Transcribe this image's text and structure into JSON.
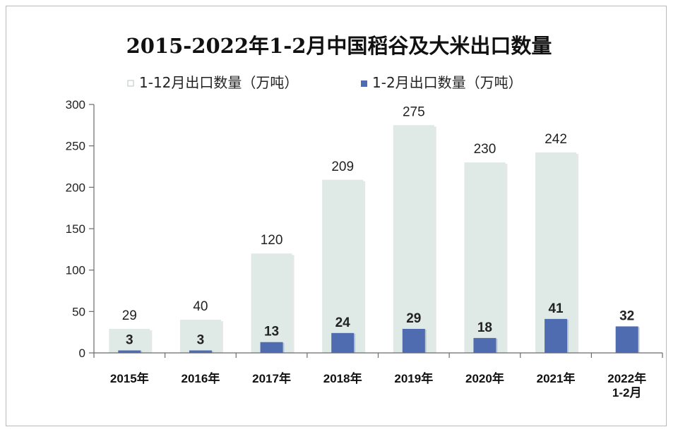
{
  "chart_data": {
    "type": "bar",
    "title": "2015-2022年1-2月中国稻谷及大米出口数量",
    "categories": [
      "2015年",
      "2016年",
      "2017年",
      "2018年",
      "2019年",
      "2020年",
      "2021年",
      "2022年\n1-2月"
    ],
    "series": [
      {
        "name": "1-12月出口数量（万吨）",
        "color": "#dfe9e6",
        "values": [
          29,
          40,
          120,
          209,
          275,
          230,
          242,
          null
        ]
      },
      {
        "name": "1-2月出口数量（万吨）",
        "color": "#4f6cb0",
        "values": [
          3,
          3,
          13,
          24,
          29,
          18,
          41,
          32
        ]
      }
    ],
    "ylim": [
      0,
      300
    ],
    "yticks": [
      0,
      50,
      100,
      150,
      200,
      250,
      300
    ],
    "legend": "top",
    "grid": false
  }
}
